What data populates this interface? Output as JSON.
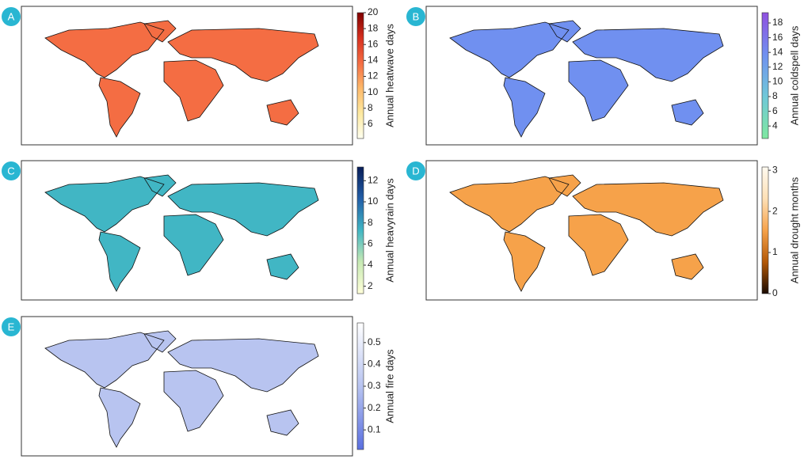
{
  "panels": [
    {
      "letter": "A",
      "colorbar": {
        "label": "Annual heatwave days",
        "lim": [
          4.2,
          20
        ],
        "ticks": [
          6,
          8,
          10,
          12,
          14,
          16,
          18,
          20
        ],
        "colors": [
          "#fffff0",
          "#fde9a0",
          "#fdb96a",
          "#f46d43",
          "#d7301f",
          "#7f0000"
        ]
      }
    },
    {
      "letter": "B",
      "colorbar": {
        "label": "Annual coldspell days",
        "lim": [
          2.3,
          19.4
        ],
        "ticks": [
          4,
          6,
          8,
          10,
          12,
          14,
          16,
          18
        ],
        "colors": [
          "#7fe8a0",
          "#70c8d8",
          "#7090f0",
          "#9050e0"
        ]
      }
    },
    {
      "letter": "C",
      "colorbar": {
        "label": "Annual heavyrain days",
        "lim": [
          1.3,
          13.3
        ],
        "ticks": [
          2,
          4,
          6,
          8,
          10,
          12
        ],
        "colors": [
          "#ffffd9",
          "#c7e9b4",
          "#41b6c4",
          "#225ea8",
          "#081d58"
        ]
      }
    },
    {
      "letter": "D",
      "colorbar": {
        "label": "Annual drought months",
        "lim": [
          0,
          3.08
        ],
        "ticks": [
          0,
          1,
          2,
          3
        ],
        "colors": [
          "#1a0a00",
          "#b35806",
          "#f6a24a",
          "#fee0b6",
          "#fffaf0"
        ]
      }
    },
    {
      "letter": "E",
      "colorbar": {
        "label": "Annual fire days",
        "lim": [
          0.01,
          0.59
        ],
        "ticks": [
          0.1,
          0.2,
          0.3,
          0.4,
          0.5
        ],
        "colors": [
          "#5a6fe0",
          "#b8c4f0",
          "#ffffff"
        ]
      }
    }
  ]
}
